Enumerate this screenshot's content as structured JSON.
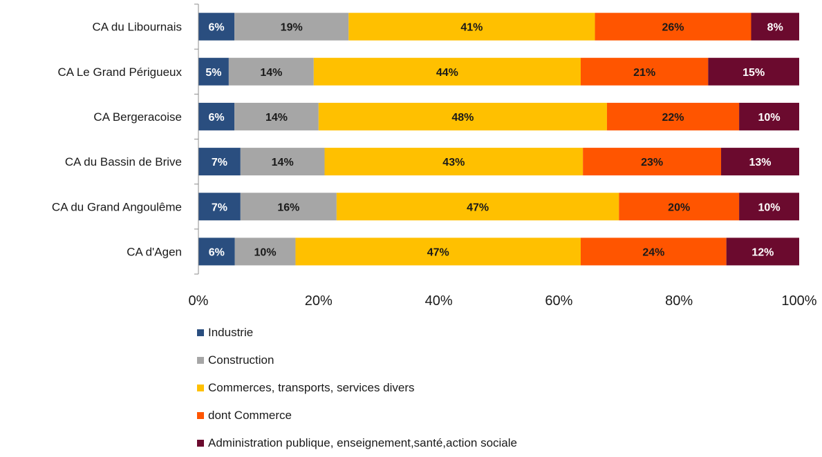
{
  "chart_data": {
    "type": "bar",
    "orientation": "horizontal",
    "stacked": true,
    "categories": [
      "CA du Libournais",
      "CA Le Grand Périgueux",
      "CA Bergeracoise",
      "CA du Bassin de Brive",
      "CA du Grand Angoulême",
      "CA d'Agen"
    ],
    "series": [
      {
        "name": "Industrie",
        "color": "#2a4e7f",
        "label_color": "#ffffff",
        "values": [
          6,
          5,
          6,
          7,
          7,
          6
        ]
      },
      {
        "name": "Construction",
        "color": "#a6a6a6",
        "label_color": "#1a1a1a",
        "values": [
          19,
          14,
          14,
          14,
          16,
          10
        ]
      },
      {
        "name": "Commerces, transports, services divers",
        "color": "#ffc000",
        "label_color": "#1a1a1a",
        "values": [
          41,
          44,
          48,
          43,
          47,
          47
        ]
      },
      {
        "name": "dont Commerce",
        "color": "#ff5500",
        "label_color": "#1a1a1a",
        "values": [
          26,
          21,
          22,
          23,
          20,
          24
        ]
      },
      {
        "name": "Administration publique, enseignement,santé,action sociale",
        "color": "#6b0a2e",
        "label_color": "#ffffff",
        "values": [
          8,
          15,
          10,
          13,
          10,
          12
        ]
      }
    ],
    "xlim": [
      0,
      100
    ],
    "xticks": [
      0,
      20,
      40,
      60,
      80,
      100
    ],
    "xtick_labels": [
      "0%",
      "20%",
      "40%",
      "60%",
      "80%",
      "100%"
    ],
    "value_suffix": "%",
    "grid": false,
    "legend_position": "bottom"
  }
}
